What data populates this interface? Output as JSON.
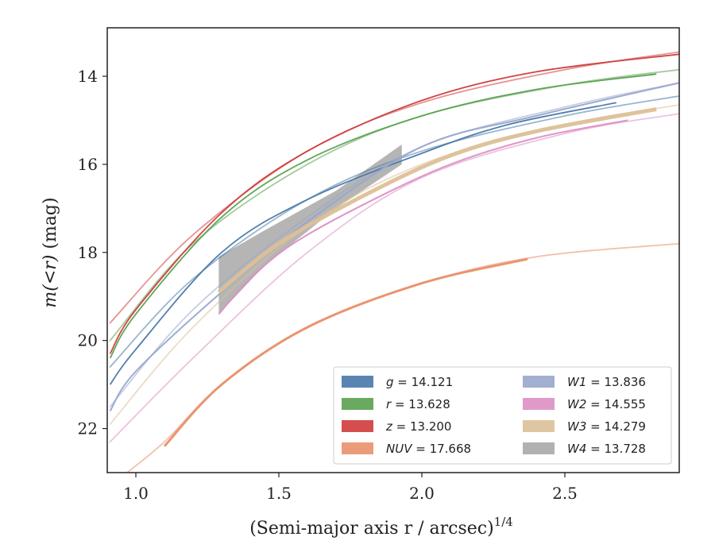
{
  "chart_data": {
    "type": "line",
    "title": "",
    "xlabel": "(Semi-major axis r / arcsec)",
    "xlabel_superscript": "1/4",
    "ylabel_prefix": "m(<r)",
    "ylabel_unit": "(mag)",
    "xlim": [
      0.9,
      2.9
    ],
    "ylim": [
      23.0,
      12.9
    ],
    "y_inverted": true,
    "xticks": [
      1.0,
      1.5,
      2.0,
      2.5
    ],
    "xtick_labels": [
      "1.0",
      "1.5",
      "2.0",
      "2.5"
    ],
    "yticks": [
      14,
      16,
      18,
      20,
      22
    ],
    "ytick_labels": [
      "14",
      "16",
      "18",
      "20",
      "22"
    ],
    "grid": false,
    "legend_position": "lower-right",
    "series": [
      {
        "name": "g = 14.121",
        "color": "#4878a8",
        "style": "curve",
        "faint": [
          [
            0.91,
            20.6
          ],
          [
            1.2,
            18.6
          ],
          [
            1.6,
            16.8
          ],
          [
            2.0,
            15.7
          ],
          [
            2.5,
            14.9
          ],
          [
            2.9,
            14.45
          ]
        ],
        "bold": [
          [
            0.91,
            21.0
          ],
          [
            1.0,
            20.2
          ],
          [
            1.3,
            18.0
          ],
          [
            1.6,
            16.8
          ],
          [
            2.0,
            15.75
          ],
          [
            2.3,
            15.1
          ],
          [
            2.68,
            14.6
          ]
        ],
        "bold_width": 1.8
      },
      {
        "name": "r = 13.628",
        "color": "#59a14f",
        "style": "curve",
        "faint": [
          [
            0.91,
            20.0
          ],
          [
            1.2,
            17.8
          ],
          [
            1.6,
            16.0
          ],
          [
            2.0,
            14.9
          ],
          [
            2.5,
            14.2
          ],
          [
            2.9,
            13.85
          ]
        ],
        "bold": [
          [
            0.91,
            20.4
          ],
          [
            1.0,
            19.4
          ],
          [
            1.3,
            17.2
          ],
          [
            1.6,
            15.9
          ],
          [
            2.0,
            14.9
          ],
          [
            2.4,
            14.3
          ],
          [
            2.82,
            13.95
          ]
        ],
        "bold_width": 1.8
      },
      {
        "name": "z = 13.200",
        "color": "#d03b3b",
        "style": "curve",
        "faint": [
          [
            0.91,
            19.6
          ],
          [
            1.2,
            17.6
          ],
          [
            1.6,
            15.7
          ],
          [
            2.0,
            14.6
          ],
          [
            2.5,
            13.85
          ],
          [
            2.9,
            13.45
          ]
        ],
        "bold": [
          [
            0.91,
            20.3
          ],
          [
            1.0,
            19.3
          ],
          [
            1.3,
            17.1
          ],
          [
            1.6,
            15.7
          ],
          [
            2.0,
            14.55
          ],
          [
            2.4,
            13.9
          ],
          [
            2.9,
            13.5
          ]
        ],
        "bold_width": 1.8
      },
      {
        "name": "NUV = 17.668",
        "color": "#e8906a",
        "style": "curve",
        "faint": [
          [
            0.95,
            23.1
          ],
          [
            1.1,
            22.3
          ],
          [
            1.3,
            21.0
          ],
          [
            1.6,
            19.7
          ],
          [
            2.0,
            18.7
          ],
          [
            2.4,
            18.1
          ],
          [
            2.9,
            17.8
          ]
        ],
        "bold": [
          [
            1.1,
            22.4
          ],
          [
            1.3,
            21.0
          ],
          [
            1.6,
            19.7
          ],
          [
            2.0,
            18.7
          ],
          [
            2.37,
            18.15
          ]
        ],
        "bold_width": 3.0
      },
      {
        "name": "W1 = 13.836",
        "color": "#98a6cc",
        "style": "curve",
        "faint": [
          [
            0.91,
            21.5
          ],
          [
            1.2,
            19.3
          ],
          [
            1.6,
            17.2
          ],
          [
            2.0,
            15.6
          ],
          [
            2.5,
            14.7
          ],
          [
            2.9,
            14.15
          ]
        ],
        "bold": [
          [
            0.91,
            21.6
          ],
          [
            1.0,
            20.7
          ],
          [
            1.3,
            18.9
          ],
          [
            1.6,
            17.3
          ],
          [
            2.0,
            15.6
          ],
          [
            2.4,
            14.9
          ],
          [
            2.9,
            14.15
          ]
        ],
        "bold_width": 2.0
      },
      {
        "name": "W2 = 14.555",
        "color": "#dd8fc4",
        "style": "curve",
        "faint": [
          [
            0.91,
            22.3
          ],
          [
            1.2,
            20.4
          ],
          [
            1.6,
            18.0
          ],
          [
            2.0,
            16.3
          ],
          [
            2.5,
            15.3
          ],
          [
            2.9,
            14.85
          ]
        ],
        "bold": [
          [
            1.29,
            19.4
          ],
          [
            1.4,
            18.6
          ],
          [
            1.55,
            17.8
          ],
          [
            1.8,
            16.9
          ],
          [
            2.1,
            16.0
          ],
          [
            2.4,
            15.4
          ],
          [
            2.72,
            15.0
          ]
        ],
        "bold_width": 2.0
      },
      {
        "name": "W3 = 14.279",
        "color": "#dcc098",
        "style": "curve",
        "faint": [
          [
            0.91,
            21.9
          ],
          [
            1.2,
            19.7
          ],
          [
            1.6,
            17.4
          ],
          [
            2.0,
            16.0
          ],
          [
            2.5,
            15.1
          ],
          [
            2.9,
            14.65
          ]
        ],
        "bold": [
          [
            1.29,
            18.9
          ],
          [
            1.5,
            17.8
          ],
          [
            1.8,
            16.7
          ],
          [
            2.1,
            15.8
          ],
          [
            2.4,
            15.25
          ],
          [
            2.82,
            14.75
          ]
        ],
        "bold_width": 5.0
      },
      {
        "name": "W4 = 13.728",
        "color": "#a8a8a8",
        "style": "band",
        "upper": [
          [
            1.29,
            18.1
          ],
          [
            1.45,
            17.5
          ],
          [
            1.7,
            16.6
          ],
          [
            1.93,
            15.55
          ]
        ],
        "lower": [
          [
            1.29,
            19.4
          ],
          [
            1.45,
            18.3
          ],
          [
            1.7,
            17.0
          ],
          [
            1.93,
            16.0
          ]
        ]
      }
    ]
  }
}
